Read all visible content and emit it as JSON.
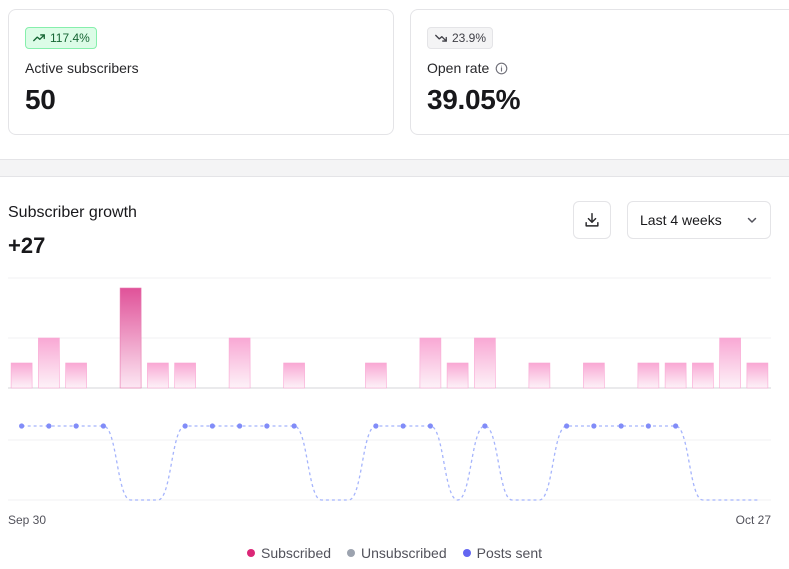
{
  "cards": [
    {
      "badge": "117.4%",
      "trend": "up",
      "label": "Active subscribers",
      "value": "50"
    },
    {
      "badge": "23.9%",
      "trend": "down",
      "label": "Open rate",
      "value": "39.05%"
    }
  ],
  "growth": {
    "title": "Subscriber growth",
    "total": "+27",
    "range_label": "Last 4 weeks"
  },
  "colors": {
    "subscribed": "#db2777",
    "unsubscribed": "#9ca3af",
    "posts": "#6366f1"
  },
  "chart_data": {
    "type": "bar",
    "title": "Subscriber growth",
    "x_start_label": "Sep 30",
    "x_end_label": "Oct 27",
    "days": 28,
    "series": [
      {
        "name": "Subscribed",
        "values": [
          1,
          2,
          1,
          0,
          4,
          1,
          1,
          0,
          2,
          0,
          1,
          0,
          0,
          1,
          0,
          2,
          1,
          2,
          0,
          1,
          0,
          1,
          0,
          1,
          1,
          1,
          2,
          1
        ]
      },
      {
        "name": "Unsubscribed",
        "values": [
          0,
          0,
          0,
          0,
          0,
          0,
          0,
          0,
          0,
          0,
          0,
          0,
          0,
          0,
          0,
          0,
          0,
          0,
          0,
          0,
          0,
          0,
          0,
          0,
          0,
          0,
          0,
          0
        ]
      },
      {
        "name": "Posts sent",
        "values": [
          1,
          1,
          1,
          1,
          0,
          0,
          1,
          1,
          1,
          1,
          1,
          0,
          0,
          1,
          1,
          1,
          0,
          1,
          0,
          0,
          1,
          1,
          1,
          1,
          1,
          0,
          0,
          0
        ]
      }
    ],
    "ylim_bars": [
      0,
      4.4
    ],
    "ylim_posts": [
      0,
      1
    ],
    "legend": [
      "Subscribed",
      "Unsubscribed",
      "Posts sent"
    ]
  }
}
